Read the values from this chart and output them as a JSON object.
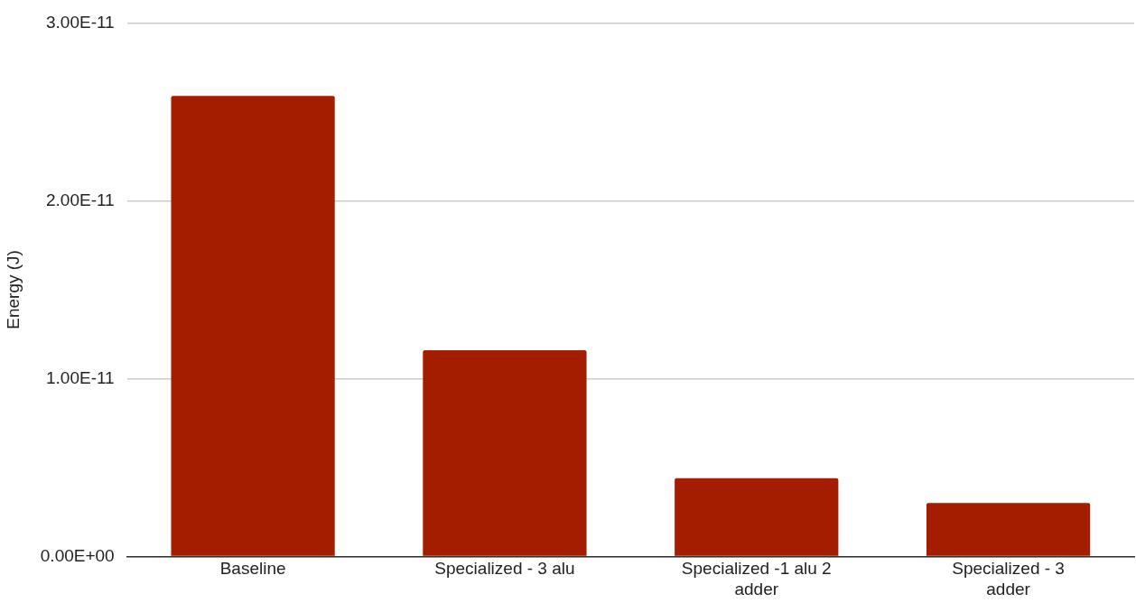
{
  "chart_data": {
    "type": "bar",
    "ylabel": "Energy (J)",
    "categories": [
      "Baseline",
      "Specialized - 3 alu",
      "Specialized -1 alu 2 adder",
      "Specialized - 3 adder"
    ],
    "values": [
      2.59e-11,
      1.16e-11,
      4.4e-12,
      3e-12
    ],
    "color": "#a51d00",
    "ylim": [
      0,
      3e-11
    ],
    "yticks": [
      {
        "value": 0,
        "label": "0.00E+00"
      },
      {
        "value": 1e-11,
        "label": "1.00E-11"
      },
      {
        "value": 2e-11,
        "label": "2.00E-11"
      },
      {
        "value": 3e-11,
        "label": "3.00E-11"
      }
    ],
    "grid": "y"
  }
}
